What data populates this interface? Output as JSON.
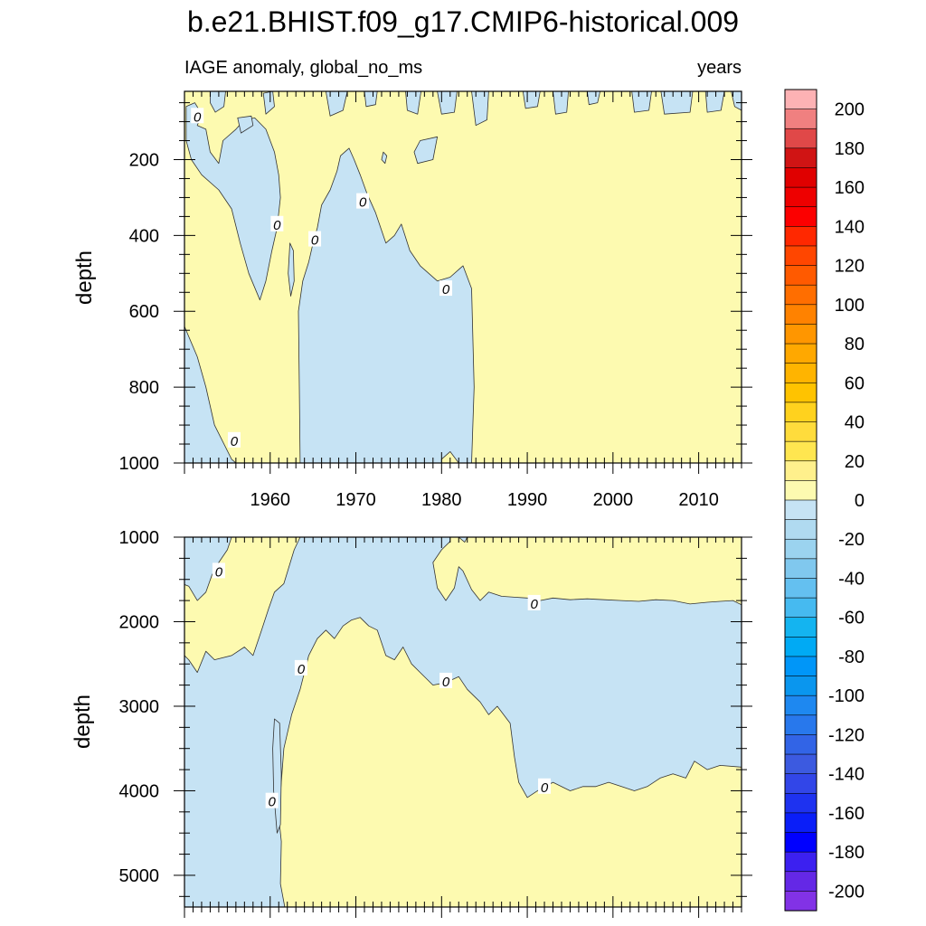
{
  "title": "b.e21.BHIST.f09_g17.CMIP6-historical.009",
  "colors": {
    "positive_fill": "#fdfab0",
    "negative_fill": "#c6e3f4",
    "contour_line": "#333333",
    "axis": "#000000"
  },
  "chart_data": [
    {
      "type": "filled_contour",
      "title_left": "IAGE anomaly, global_no_ms",
      "title_right": "years",
      "xlabel": "",
      "ylabel": "depth",
      "xlim": [
        1950,
        2015
      ],
      "ylim": [
        20,
        1000
      ],
      "y_inverted": true,
      "xticks": [
        1960,
        1970,
        1980,
        1990,
        2000,
        2010
      ],
      "xtick_labels": [
        "1960",
        "1970",
        "1980",
        "1990",
        "2000",
        "2010"
      ],
      "yticks": [
        200,
        400,
        600,
        800,
        1000
      ],
      "ytick_labels": [
        "200",
        "400",
        "600",
        "800",
        "1000"
      ],
      "contour_level": 0,
      "contour_labels": [
        {
          "x": 1951.5,
          "y": 85,
          "text": "0"
        },
        {
          "x": 1960.8,
          "y": 370,
          "text": "0"
        },
        {
          "x": 1965.2,
          "y": 410,
          "text": "0"
        },
        {
          "x": 1970.8,
          "y": 310,
          "text": "0"
        },
        {
          "x": 1980.5,
          "y": 540,
          "text": "0"
        },
        {
          "x": 1955.8,
          "y": 940,
          "text": "0"
        }
      ],
      "negative_regions": [
        [
          [
            1950.2,
            60
          ],
          [
            1951.2,
            50
          ],
          [
            1952,
            80
          ],
          [
            1951.5,
            110
          ],
          [
            1952.5,
            120
          ],
          [
            1953,
            180
          ],
          [
            1954,
            210
          ],
          [
            1954.5,
            150
          ],
          [
            1956,
            120
          ],
          [
            1957,
            95
          ],
          [
            1958.2,
            90
          ],
          [
            1959.5,
            120
          ],
          [
            1960.5,
            180
          ],
          [
            1961,
            240
          ],
          [
            1961.2,
            300
          ],
          [
            1960.8,
            380
          ],
          [
            1960.2,
            440
          ],
          [
            1959.5,
            520
          ],
          [
            1958.8,
            570
          ],
          [
            1957.5,
            500
          ],
          [
            1956.5,
            420
          ],
          [
            1955.5,
            330
          ],
          [
            1954,
            280
          ],
          [
            1952,
            240
          ],
          [
            1950.8,
            200
          ],
          [
            1950.2,
            150
          ]
        ],
        [
          [
            1950,
            640
          ],
          [
            1951.5,
            720
          ],
          [
            1952.5,
            800
          ],
          [
            1953.5,
            900
          ],
          [
            1955.5,
            990
          ],
          [
            1956,
            1000
          ],
          [
            1950,
            1000
          ]
        ],
        [
          [
            1963.5,
            1000
          ],
          [
            1963.4,
            800
          ],
          [
            1963.3,
            600
          ],
          [
            1963.8,
            520
          ],
          [
            1964.5,
            470
          ],
          [
            1965,
            420
          ],
          [
            1965.5,
            380
          ],
          [
            1966,
            320
          ],
          [
            1967,
            280
          ],
          [
            1967.8,
            230
          ],
          [
            1968.2,
            190
          ],
          [
            1969.2,
            170
          ],
          [
            1969.8,
            200
          ],
          [
            1970.5,
            240
          ],
          [
            1971.3,
            290
          ],
          [
            1972.3,
            340
          ],
          [
            1973.5,
            420
          ],
          [
            1974.5,
            400
          ],
          [
            1975.3,
            370
          ],
          [
            1976.3,
            440
          ],
          [
            1977.5,
            480
          ],
          [
            1979.5,
            520
          ],
          [
            1981,
            510
          ],
          [
            1982.5,
            480
          ],
          [
            1983.5,
            540
          ],
          [
            1983.8,
            800
          ],
          [
            1983.5,
            1000
          ],
          [
            1982,
            1000
          ],
          [
            1981,
            970
          ],
          [
            1980,
            990
          ],
          [
            1980,
            1000
          ]
        ],
        [
          [
            1962.3,
            420
          ],
          [
            1962.7,
            440
          ],
          [
            1962.8,
            520
          ],
          [
            1962.4,
            560
          ],
          [
            1962.1,
            500
          ]
        ],
        [
          [
            1973.2,
            180
          ],
          [
            1973.6,
            190
          ],
          [
            1973.4,
            210
          ],
          [
            1973,
            200
          ]
        ],
        [
          [
            1977.5,
            150
          ],
          [
            1979.5,
            140
          ],
          [
            1979,
            200
          ],
          [
            1977.2,
            210
          ],
          [
            1976.8,
            180
          ]
        ],
        [
          [
            1953,
            20
          ],
          [
            1954.8,
            20
          ],
          [
            1954.6,
            60
          ],
          [
            1953.6,
            75
          ],
          [
            1953,
            50
          ]
        ],
        [
          [
            1956.2,
            90
          ],
          [
            1957.8,
            85
          ],
          [
            1958,
            110
          ],
          [
            1956.6,
            130
          ]
        ],
        [
          [
            1959.2,
            25
          ],
          [
            1960.3,
            20
          ],
          [
            1960.5,
            60
          ],
          [
            1959.5,
            80
          ]
        ],
        [
          [
            1966.5,
            20
          ],
          [
            1969,
            20
          ],
          [
            1968.5,
            70
          ],
          [
            1967,
            85
          ]
        ],
        [
          [
            1971,
            20
          ],
          [
            1972.5,
            20
          ],
          [
            1972.3,
            55
          ],
          [
            1971.2,
            60
          ]
        ],
        [
          [
            1975.8,
            20
          ],
          [
            1977.6,
            20
          ],
          [
            1977.2,
            80
          ],
          [
            1976,
            70
          ]
        ],
        [
          [
            1979.5,
            20
          ],
          [
            1981.8,
            20
          ],
          [
            1981.5,
            75
          ],
          [
            1980,
            80
          ]
        ],
        [
          [
            1983.5,
            20
          ],
          [
            1985.5,
            20
          ],
          [
            1985.3,
            95
          ],
          [
            1984,
            110
          ]
        ],
        [
          [
            1989.5,
            20
          ],
          [
            1991.5,
            20
          ],
          [
            1991.2,
            60
          ],
          [
            1989.8,
            65
          ]
        ],
        [
          [
            1993,
            20
          ],
          [
            1994.8,
            20
          ],
          [
            1994.6,
            75
          ],
          [
            1993.3,
            80
          ]
        ],
        [
          [
            1997,
            20
          ],
          [
            1998.5,
            20
          ],
          [
            1998.2,
            50
          ],
          [
            1997.2,
            55
          ]
        ],
        [
          [
            2002.2,
            20
          ],
          [
            2004.5,
            20
          ],
          [
            2004.2,
            70
          ],
          [
            2002.5,
            75
          ]
        ],
        [
          [
            2005.6,
            20
          ],
          [
            2009.3,
            20
          ],
          [
            2009,
            75
          ],
          [
            2006,
            80
          ]
        ],
        [
          [
            2010.8,
            20
          ],
          [
            2013,
            20
          ],
          [
            2012.6,
            70
          ],
          [
            2011,
            75
          ]
        ],
        [
          [
            2013.8,
            20
          ],
          [
            2015,
            20
          ],
          [
            2015,
            70
          ],
          [
            2014.2,
            60
          ]
        ]
      ]
    },
    {
      "type": "filled_contour",
      "xlabel": "",
      "ylabel": "depth",
      "xlim": [
        1950,
        2015
      ],
      "ylim": [
        1000,
        5375
      ],
      "y_inverted": true,
      "xticks": [
        1960,
        1970,
        1980,
        1990,
        2000,
        2010
      ],
      "yticks": [
        1000,
        2000,
        3000,
        4000,
        5000
      ],
      "ytick_labels": [
        "1000",
        "2000",
        "3000",
        "4000",
        "5000"
      ],
      "contour_level": 0,
      "contour_labels": [
        {
          "x": 1954,
          "y": 1400,
          "text": "0"
        },
        {
          "x": 1963.6,
          "y": 2550,
          "text": "0"
        },
        {
          "x": 1980.5,
          "y": 2700,
          "text": "0"
        },
        {
          "x": 1990.8,
          "y": 1780,
          "text": "0"
        },
        {
          "x": 1992,
          "y": 3950,
          "text": "0"
        },
        {
          "x": 1960.2,
          "y": 4120,
          "text": "0"
        }
      ],
      "negative_regions": [
        [
          [
            1950,
            1000
          ],
          [
            1955.5,
            1000
          ],
          [
            1955,
            1150
          ],
          [
            1954,
            1300
          ],
          [
            1953.2,
            1450
          ],
          [
            1952.5,
            1650
          ],
          [
            1951.5,
            1750
          ],
          [
            1950.5,
            1580
          ],
          [
            1950,
            1560
          ]
        ],
        [
          [
            1963.5,
            1000
          ],
          [
            1962.8,
            1150
          ],
          [
            1961.6,
            1550
          ],
          [
            1960.5,
            1650
          ],
          [
            1959.8,
            1850
          ],
          [
            1959,
            2100
          ],
          [
            1958,
            2400
          ],
          [
            1957,
            2300
          ],
          [
            1955.5,
            2400
          ],
          [
            1953.5,
            2450
          ],
          [
            1952.5,
            2350
          ],
          [
            1951.5,
            2600
          ],
          [
            1950.5,
            2450
          ],
          [
            1950,
            2400
          ],
          [
            1950,
            5375
          ],
          [
            1961.7,
            5375
          ],
          [
            1961.2,
            5100
          ],
          [
            1961.3,
            4600
          ],
          [
            1961,
            4300
          ],
          [
            1961.6,
            3500
          ],
          [
            1962.5,
            3100
          ],
          [
            1963.5,
            2800
          ],
          [
            1964.5,
            2400
          ],
          [
            1965.5,
            2200
          ],
          [
            1966.5,
            2100
          ],
          [
            1967.5,
            2200
          ],
          [
            1968.5,
            2050
          ],
          [
            1969.5,
            1980
          ],
          [
            1970.5,
            1950
          ],
          [
            1971.5,
            2050
          ],
          [
            1972.5,
            2100
          ],
          [
            1973.5,
            2400
          ],
          [
            1974.5,
            2450
          ],
          [
            1975.5,
            2300
          ],
          [
            1976.5,
            2500
          ],
          [
            1977.5,
            2600
          ],
          [
            1979,
            2750
          ],
          [
            1980.5,
            2720
          ],
          [
            1982,
            2650
          ],
          [
            1983,
            2800
          ],
          [
            1984.5,
            2950
          ],
          [
            1985.5,
            3100
          ],
          [
            1986.5,
            3000
          ],
          [
            1988,
            3200
          ],
          [
            1988.5,
            3600
          ],
          [
            1989,
            3900
          ],
          [
            1990,
            4080
          ],
          [
            1991.5,
            3980
          ],
          [
            1993,
            3900
          ],
          [
            1995,
            4000
          ],
          [
            1996.5,
            3950
          ],
          [
            1998,
            3950
          ],
          [
            1999.5,
            3900
          ],
          [
            2001,
            3950
          ],
          [
            2002.5,
            4000
          ],
          [
            2004,
            3950
          ],
          [
            2005.5,
            3850
          ],
          [
            2007,
            3800
          ],
          [
            2008.5,
            3850
          ],
          [
            2009.5,
            3650
          ],
          [
            2011,
            3750
          ],
          [
            2012.5,
            3700
          ],
          [
            2015,
            3720
          ],
          [
            2015,
            1800
          ],
          [
            2014,
            1750
          ],
          [
            2012.5,
            1760
          ],
          [
            2011,
            1770
          ],
          [
            2009,
            1790
          ],
          [
            2007,
            1750
          ],
          [
            2005,
            1740
          ],
          [
            2003,
            1760
          ],
          [
            2001,
            1750
          ],
          [
            1999,
            1740
          ],
          [
            1997,
            1730
          ],
          [
            1995,
            1740
          ],
          [
            1993,
            1720
          ],
          [
            1991.5,
            1750
          ],
          [
            1990,
            1720
          ],
          [
            1988.5,
            1710
          ],
          [
            1987,
            1700
          ],
          [
            1985.5,
            1650
          ],
          [
            1984.5,
            1750
          ],
          [
            1983.5,
            1620
          ],
          [
            1982.5,
            1400
          ],
          [
            1982,
            1350
          ],
          [
            1981.5,
            1600
          ],
          [
            1980.5,
            1750
          ],
          [
            1979.5,
            1600
          ],
          [
            1979,
            1300
          ],
          [
            1980,
            1150
          ],
          [
            1981,
            1050
          ],
          [
            1981,
            1000
          ]
        ],
        [
          [
            1960.5,
            3150
          ],
          [
            1961.1,
            3200
          ],
          [
            1961.3,
            3800
          ],
          [
            1961.2,
            4400
          ],
          [
            1960.8,
            4500
          ],
          [
            1960.4,
            4000
          ],
          [
            1960.3,
            3500
          ]
        ],
        [
          [
            1982,
            1000
          ],
          [
            1983,
            1000
          ],
          [
            1982.7,
            1060
          ]
        ]
      ]
    }
  ],
  "colorbar": {
    "labels": [
      "200",
      "180",
      "160",
      "140",
      "120",
      "100",
      "80",
      "60",
      "40",
      "20",
      "0",
      "-20",
      "-40",
      "-60",
      "-80",
      "-100",
      "-120",
      "-140",
      "-160",
      "-180",
      "-200"
    ],
    "colors": [
      "#fdb2b4",
      "#f08080",
      "#e04848",
      "#d01414",
      "#e00000",
      "#ee0000",
      "#fc0000",
      "#ff2800",
      "#ff4600",
      "#ff5a00",
      "#ff6e00",
      "#ff8200",
      "#ff9600",
      "#ffa800",
      "#ffb400",
      "#ffc300",
      "#ffd21e",
      "#ffdc3c",
      "#ffe650",
      "#fff08c",
      "#fdfab0",
      "#c6e3f4",
      "#b0daf0",
      "#9bd3ef",
      "#80c8ee",
      "#64c0f0",
      "#46baf0",
      "#14b4f0",
      "#00aaf4",
      "#0096f8",
      "#0a96ee",
      "#1e88f0",
      "#2878ec",
      "#3264e6",
      "#3c5ae0",
      "#3246e8",
      "#1e32f0",
      "#0a1ef8",
      "#0000ff",
      "#3c20f0",
      "#6428e6",
      "#8232e6"
    ]
  }
}
